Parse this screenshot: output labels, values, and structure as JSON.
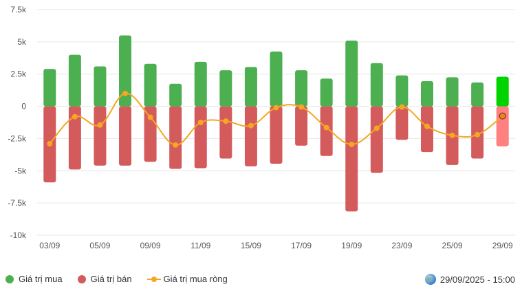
{
  "chart_data": {
    "type": "bar",
    "x_ticks": [
      "03/09",
      "05/09",
      "09/09",
      "11/09",
      "15/09",
      "17/09",
      "19/09",
      "23/09",
      "25/09",
      "29/09"
    ],
    "y_ticks": [
      "7.5k",
      "5k",
      "2.5k",
      "0",
      "-2.5k",
      "-5k",
      "-7.5k",
      "-10k"
    ],
    "ylim": [
      -10000,
      7500
    ],
    "grid": true,
    "legend_position": "bottom-left",
    "bar_count": 19,
    "series": [
      {
        "name": "Giá trị mua",
        "color": "#4caf50",
        "highlight_color": "#00d400",
        "values": [
          2900,
          4000,
          3100,
          5500,
          3300,
          1750,
          3450,
          2800,
          3050,
          4250,
          2800,
          2150,
          5100,
          3350,
          2400,
          1950,
          2250,
          1850,
          2300
        ]
      },
      {
        "name": "Giá trị bán",
        "color": "#d45b5b",
        "highlight_color": "#ff8080",
        "values": [
          -5900,
          -4900,
          -4600,
          -4600,
          -4300,
          -4850,
          -4800,
          -4050,
          -4650,
          -4450,
          -3050,
          -3850,
          -8150,
          -5150,
          -2600,
          -3550,
          -4550,
          -4050,
          -3100
        ]
      },
      {
        "name": "Giá trị mua ròng",
        "color": "#f5a623",
        "values": [
          -2900,
          -800,
          -1450,
          1000,
          -850,
          -3000,
          -1250,
          -1150,
          -1500,
          -100,
          -50,
          -1650,
          -2950,
          -1700,
          -50,
          -1550,
          -2250,
          -2200,
          -750
        ]
      }
    ]
  },
  "legend": {
    "buy_label": "Giá trị mua",
    "sell_label": "Giá trị bán",
    "net_label": "Giá trị mua ròng"
  },
  "timestamp": "29/09/2025 - 15:00"
}
